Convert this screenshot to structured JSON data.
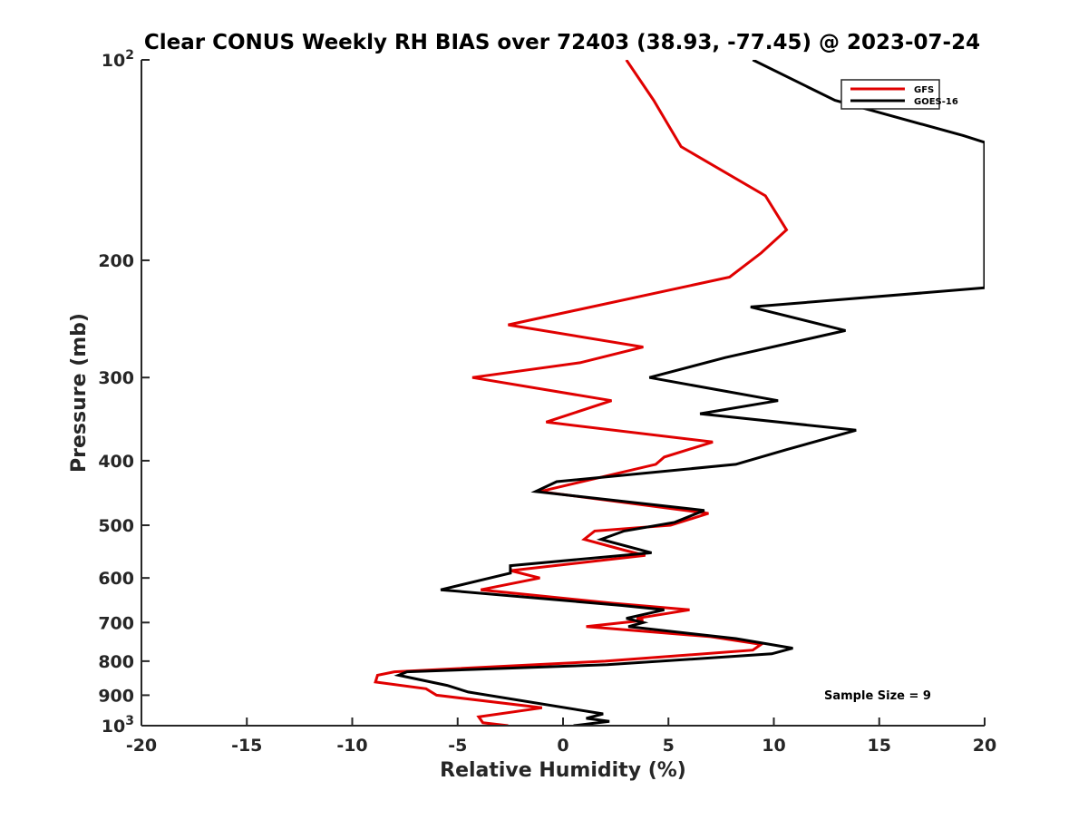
{
  "chart_data": {
    "type": "line",
    "title": "Clear CONUS Weekly RH BIAS over 72403 (38.93, -77.45) @ 2023-07-24",
    "xlabel": "Relative Humidity (%)",
    "ylabel": "Pressure (mb)",
    "xlim": [
      -20,
      20
    ],
    "ylim": [
      100,
      1000
    ],
    "yscale": "log",
    "y_reversed": true,
    "grid": false,
    "legend_position": "top-right",
    "x_ticks": [
      -20,
      -15,
      -10,
      -5,
      0,
      5,
      10,
      15,
      20
    ],
    "x_tick_labels": [
      "-20",
      "-15",
      "-10",
      "-5",
      "0",
      "5",
      "10",
      "15",
      "20"
    ],
    "y_ticks": [
      100,
      200,
      300,
      400,
      500,
      600,
      700,
      800,
      900,
      1000
    ],
    "y_tick_labels": [
      {
        "base": "10",
        "sup": "2"
      },
      {
        "base": "200",
        "sup": ""
      },
      {
        "base": "300",
        "sup": ""
      },
      {
        "base": "400",
        "sup": ""
      },
      {
        "base": "500",
        "sup": ""
      },
      {
        "base": "600",
        "sup": ""
      },
      {
        "base": "700",
        "sup": ""
      },
      {
        "base": "800",
        "sup": ""
      },
      {
        "base": "900",
        "sup": ""
      },
      {
        "base": "10",
        "sup": "3"
      }
    ],
    "annotation": "Sample Size = 9",
    "series": [
      {
        "name": "GFS",
        "color": "#e00000",
        "points": [
          [
            3.0,
            100
          ],
          [
            4.3,
            115
          ],
          [
            5.6,
            135
          ],
          [
            9.6,
            160
          ],
          [
            10.6,
            180
          ],
          [
            9.4,
            195
          ],
          [
            7.9,
            212
          ],
          [
            -2.6,
            250
          ],
          [
            3.8,
            270
          ],
          [
            0.8,
            285
          ],
          [
            -4.3,
            300
          ],
          [
            2.3,
            325
          ],
          [
            -0.8,
            350
          ],
          [
            7.1,
            375
          ],
          [
            4.8,
            395
          ],
          [
            4.4,
            405
          ],
          [
            -1.1,
            445
          ],
          [
            6.9,
            480
          ],
          [
            5.1,
            500
          ],
          [
            1.5,
            510
          ],
          [
            1.0,
            525
          ],
          [
            2.9,
            545
          ],
          [
            3.9,
            555
          ],
          [
            -2.5,
            585
          ],
          [
            -1.1,
            600
          ],
          [
            -3.9,
            625
          ],
          [
            2.4,
            655
          ],
          [
            6.0,
            670
          ],
          [
            3.5,
            690
          ],
          [
            3.8,
            695
          ],
          [
            1.1,
            710
          ],
          [
            7.0,
            735
          ],
          [
            9.4,
            755
          ],
          [
            9.0,
            770
          ],
          [
            2.0,
            800
          ],
          [
            -8.0,
            830
          ],
          [
            -8.8,
            840
          ],
          [
            -8.9,
            860
          ],
          [
            -6.5,
            880
          ],
          [
            -6.0,
            900
          ],
          [
            -1.0,
            940
          ],
          [
            -4.0,
            970
          ],
          [
            -3.8,
            990
          ],
          [
            -2.6,
            1000
          ]
        ]
      },
      {
        "name": "GOES-16",
        "color": "#000000",
        "points": [
          [
            9.0,
            100
          ],
          [
            12.9,
            115
          ],
          [
            19.0,
            130
          ],
          [
            20.0,
            133
          ],
          [
            20.0,
            220
          ],
          [
            8.9,
            235
          ],
          [
            13.4,
            255
          ],
          [
            7.7,
            280
          ],
          [
            4.1,
            300
          ],
          [
            10.2,
            325
          ],
          [
            6.5,
            340
          ],
          [
            13.9,
            360
          ],
          [
            10.6,
            385
          ],
          [
            8.2,
            405
          ],
          [
            -0.3,
            430
          ],
          [
            -1.3,
            445
          ],
          [
            6.7,
            475
          ],
          [
            5.3,
            495
          ],
          [
            2.9,
            510
          ],
          [
            1.8,
            525
          ],
          [
            4.2,
            550
          ],
          [
            -2.5,
            575
          ],
          [
            -2.5,
            590
          ],
          [
            -5.8,
            625
          ],
          [
            2.8,
            660
          ],
          [
            4.8,
            670
          ],
          [
            3.0,
            690
          ],
          [
            3.8,
            700
          ],
          [
            3.1,
            710
          ],
          [
            8.2,
            740
          ],
          [
            10.9,
            765
          ],
          [
            9.9,
            780
          ],
          [
            2.1,
            810
          ],
          [
            -7.4,
            830
          ],
          [
            -7.8,
            840
          ],
          [
            -5.5,
            870
          ],
          [
            -4.5,
            890
          ],
          [
            1.9,
            960
          ],
          [
            1.1,
            975
          ],
          [
            2.2,
            985
          ],
          [
            0.5,
            1000
          ]
        ]
      }
    ]
  }
}
